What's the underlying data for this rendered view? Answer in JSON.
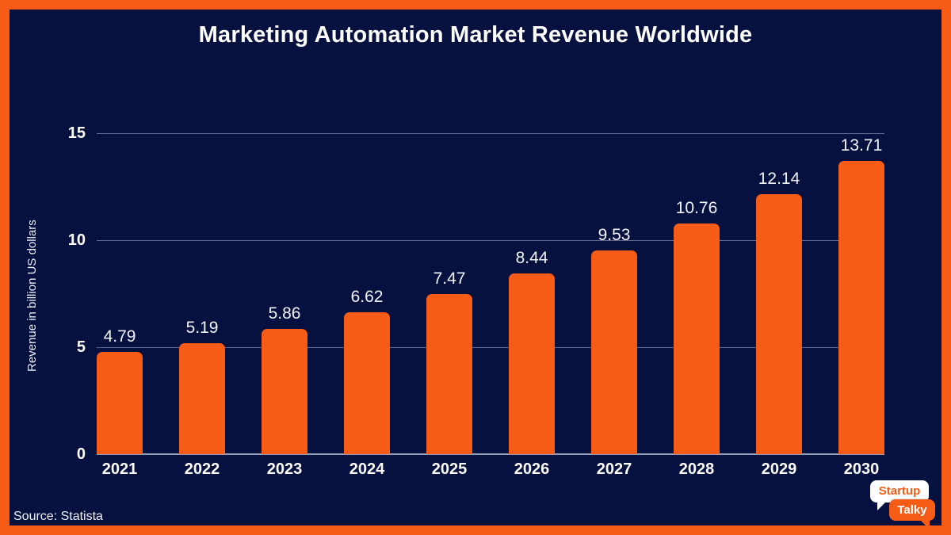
{
  "page": {
    "title": "Marketing Automation Market Revenue Worldwide",
    "source": "Source: Statista"
  },
  "logo": {
    "top_text": "Startup",
    "bottom_text": "Talky"
  },
  "colors": {
    "background": "#061140",
    "accent_orange": "#F75C16",
    "gridline": "#A5AFCD",
    "text": "#FFFFFF"
  },
  "chart_data": {
    "type": "bar",
    "title": "Marketing Automation Market Revenue Worldwide",
    "categories": [
      "2021",
      "2022",
      "2023",
      "2024",
      "2025",
      "2026",
      "2027",
      "2028",
      "2029",
      "2030"
    ],
    "values": [
      4.79,
      5.19,
      5.86,
      6.62,
      7.47,
      8.44,
      9.53,
      10.76,
      12.14,
      13.71
    ],
    "value_labels": [
      "4.79",
      "5.19",
      "5.86",
      "6.62",
      "7.47",
      "8.44",
      "9.53",
      "10.76",
      "12.14",
      "13.71"
    ],
    "xlabel": "",
    "ylabel": "Revenue in billion US dollars",
    "ylim": [
      0,
      15
    ],
    "yticks": [
      0,
      5,
      10,
      15
    ],
    "grid": true,
    "legend": false,
    "bar_color": "#F75C16"
  }
}
